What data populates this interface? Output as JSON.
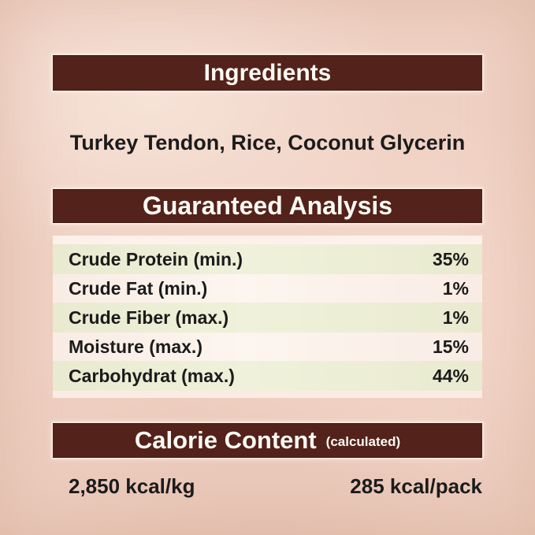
{
  "colors": {
    "bg": "#efd1c3",
    "bar": "#53221a",
    "bar_text": "#fdfaf4",
    "row_green": "#e9ead0",
    "row_pale": "#f9ece5",
    "ink": "#1b1b1b"
  },
  "ingredients": {
    "title": "Ingredients",
    "list": "Turkey Tendon, Rice, Coconut Glycerin"
  },
  "guaranteed_analysis": {
    "title": "Guaranteed Analysis",
    "rows": [
      {
        "label": "Crude Protein (min.)",
        "value": "35%"
      },
      {
        "label": "Crude Fat (min.)",
        "value": "1%"
      },
      {
        "label": "Crude Fiber (max.)",
        "value": "1%"
      },
      {
        "label": "Moisture (max.)",
        "value": "15%"
      },
      {
        "label": "Carbohydrat (max.)",
        "value": "44%"
      }
    ]
  },
  "calorie_content": {
    "title": "Calorie Content",
    "subtitle": "(calculated)",
    "per_kg": "2,850 kcal/kg",
    "per_pack": "285 kcal/pack"
  }
}
